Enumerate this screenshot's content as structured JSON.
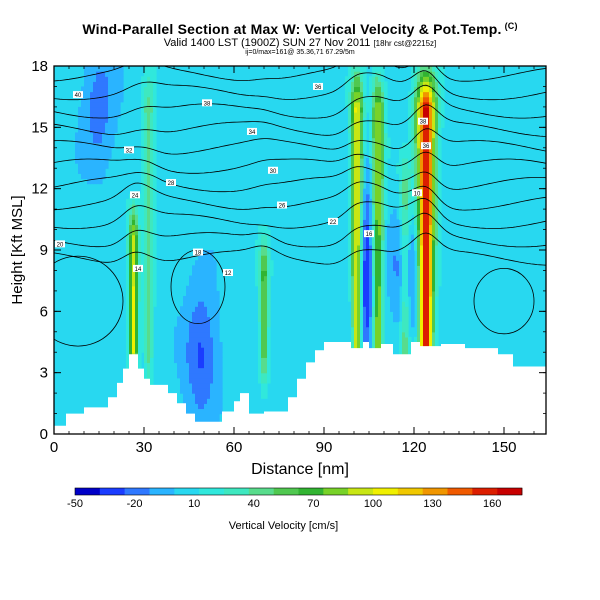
{
  "header": {
    "title": "Wind-Parallel Section at Max W: Vertical Velocity & Pot.Temp.",
    "title_mark": "(C)",
    "subtitle_main": "Valid 1400 LST (1900Z) SUN 27 Nov 2011",
    "subtitle_extra": "[18hr cst@2215z]",
    "subsubtitle": "ij=0/max=161@ 35.36,71 67.29/5m"
  },
  "chart_data": {
    "type": "heatmap",
    "xlabel": "Distance [nm]",
    "ylabel": "Height [Kft MSL]",
    "xlim": [
      0,
      164
    ],
    "ylim": [
      0,
      18
    ],
    "xticks": [
      "0",
      "30",
      "60",
      "90",
      "120",
      "150"
    ],
    "xtick_values": [
      0,
      30,
      60,
      90,
      120,
      150
    ],
    "yticks": [
      "0",
      "3",
      "6",
      "9",
      "12",
      "15",
      "18"
    ],
    "ytick_values": [
      0,
      3,
      6,
      9,
      12,
      15,
      18
    ],
    "colorbar": {
      "label": "Vertical Velocity [cm/s]",
      "ticks": [
        "-50",
        "-20",
        "10",
        "40",
        "70",
        "100",
        "130",
        "160"
      ],
      "tick_values": [
        -50,
        -20,
        10,
        40,
        70,
        100,
        130,
        160
      ],
      "range": [
        -50,
        175
      ],
      "colors": [
        "#0000c8",
        "#1a3cff",
        "#2f78ff",
        "#2ab4ff",
        "#28d8f0",
        "#30e8dc",
        "#3ee8c0",
        "#58dc8c",
        "#50c850",
        "#32b432",
        "#78d228",
        "#c8e614",
        "#f0f000",
        "#f0c800",
        "#f09600",
        "#f05a00",
        "#dc1e00",
        "#c80000"
      ]
    },
    "updrafts": [
      {
        "x": 26.5,
        "top": 11.5,
        "peak": 95
      },
      {
        "x": 31.5,
        "top": 18,
        "peak": 40
      },
      {
        "x": 70,
        "top": 10,
        "peak": 60
      },
      {
        "x": 101,
        "top": 18,
        "peak": 100
      },
      {
        "x": 108,
        "top": 18,
        "peak": 80
      },
      {
        "x": 124,
        "top": 18,
        "peak": 161
      },
      {
        "x": 117,
        "top": 14,
        "peak": 45
      }
    ],
    "downdrafts": [
      {
        "x": 49,
        "y": 4,
        "strength": -35
      },
      {
        "x": 104,
        "y": 8,
        "strength": -45
      },
      {
        "x": 118,
        "y": 8,
        "strength": -30
      },
      {
        "x": 15,
        "y": 16,
        "strength": -25
      }
    ],
    "terrain": [
      [
        0,
        0.4
      ],
      [
        4,
        0.4
      ],
      [
        4,
        1.0
      ],
      [
        10,
        1.0
      ],
      [
        10,
        1.3
      ],
      [
        18,
        1.3
      ],
      [
        18,
        1.8
      ],
      [
        21,
        1.8
      ],
      [
        21,
        2.5
      ],
      [
        23,
        2.5
      ],
      [
        23,
        3.2
      ],
      [
        25,
        3.2
      ],
      [
        25,
        3.9
      ],
      [
        28,
        3.9
      ],
      [
        28,
        3.2
      ],
      [
        30,
        3.2
      ],
      [
        30,
        2.7
      ],
      [
        32,
        2.7
      ],
      [
        32,
        2.4
      ],
      [
        38,
        2.4
      ],
      [
        38,
        2.0
      ],
      [
        41,
        2.0
      ],
      [
        41,
        1.5
      ],
      [
        44,
        1.5
      ],
      [
        44,
        1.0
      ],
      [
        47,
        1.0
      ],
      [
        47,
        0.6
      ],
      [
        56,
        0.6
      ],
      [
        56,
        1.1
      ],
      [
        60,
        1.1
      ],
      [
        60,
        1.6
      ],
      [
        62,
        1.6
      ],
      [
        62,
        2.0
      ],
      [
        65,
        2.0
      ],
      [
        65,
        1.0
      ],
      [
        70,
        1.0
      ],
      [
        70,
        1.1
      ],
      [
        78,
        1.1
      ],
      [
        78,
        1.8
      ],
      [
        81,
        1.8
      ],
      [
        81,
        2.7
      ],
      [
        84,
        2.7
      ],
      [
        84,
        3.5
      ],
      [
        87,
        3.5
      ],
      [
        87,
        4.1
      ],
      [
        90,
        4.1
      ],
      [
        90,
        4.5
      ],
      [
        99,
        4.5
      ],
      [
        99,
        4.2
      ],
      [
        103,
        4.2
      ],
      [
        103,
        4.5
      ],
      [
        105,
        4.5
      ],
      [
        105,
        4.2
      ],
      [
        109,
        4.2
      ],
      [
        109,
        4.4
      ],
      [
        113,
        4.4
      ],
      [
        113,
        3.9
      ],
      [
        119,
        3.9
      ],
      [
        119,
        4.5
      ],
      [
        122,
        4.5
      ],
      [
        122,
        4.3
      ],
      [
        129,
        4.3
      ],
      [
        129,
        4.4
      ],
      [
        137,
        4.4
      ],
      [
        137,
        4.2
      ],
      [
        148,
        4.2
      ],
      [
        148,
        3.9
      ],
      [
        153,
        3.9
      ],
      [
        153,
        3.3
      ],
      [
        164,
        3.3
      ]
    ],
    "isentrope_labels": [
      {
        "text": "40",
        "x": 8,
        "y": 16.6
      },
      {
        "text": "38",
        "x": 51,
        "y": 16.2
      },
      {
        "text": "36",
        "x": 88,
        "y": 17.0
      },
      {
        "text": "34",
        "x": 66,
        "y": 14.8
      },
      {
        "text": "32",
        "x": 25,
        "y": 13.9
      },
      {
        "text": "30",
        "x": 73,
        "y": 12.9
      },
      {
        "text": "28",
        "x": 39,
        "y": 12.3
      },
      {
        "text": "26",
        "x": 76,
        "y": 11.2
      },
      {
        "text": "24",
        "x": 27,
        "y": 11.7
      },
      {
        "text": "22",
        "x": 93,
        "y": 10.4
      },
      {
        "text": "20",
        "x": 2,
        "y": 9.3
      },
      {
        "text": "18",
        "x": 48,
        "y": 8.9
      },
      {
        "text": "16",
        "x": 105,
        "y": 9.8
      },
      {
        "text": "14",
        "x": 28,
        "y": 8.1
      },
      {
        "text": "12",
        "x": 58,
        "y": 7.9
      },
      {
        "text": "10",
        "x": 121,
        "y": 11.8
      },
      {
        "text": "38",
        "x": 123,
        "y": 15.3
      },
      {
        "text": "36",
        "x": 124,
        "y": 14.1
      }
    ]
  }
}
